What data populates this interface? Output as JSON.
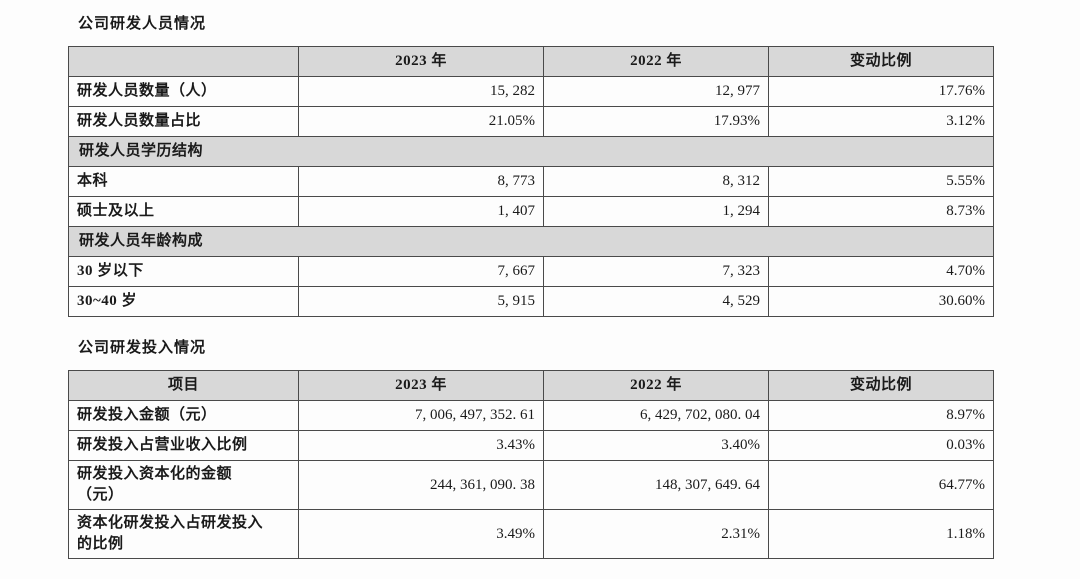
{
  "page": {
    "bg": "#fdfdfd",
    "header_bg": "#d8d8d8",
    "border_color": "#4a4a4a"
  },
  "rd_personnel": {
    "title": "公司研发人员情况",
    "headers": [
      "",
      "2023 年",
      "2022 年",
      "变动比例"
    ],
    "rows": [
      {
        "label": "研发人员数量（人）",
        "v2023": "15, 282",
        "v2022": "12, 977",
        "change": "17.76%"
      },
      {
        "label": "研发人员数量占比",
        "v2023": "21.05%",
        "v2022": "17.93%",
        "change": "3.12%"
      },
      {
        "label": "研发人员学历结构"
      },
      {
        "label": "本科",
        "v2023": "8, 773",
        "v2022": "8, 312",
        "change": "5.55%"
      },
      {
        "label": "硕士及以上",
        "v2023": "1, 407",
        "v2022": "1, 294",
        "change": "8.73%"
      },
      {
        "label": "研发人员年龄构成"
      },
      {
        "label": "30 岁以下",
        "v2023": "7, 667",
        "v2022": "7, 323",
        "change": "4.70%"
      },
      {
        "label": "30~40 岁",
        "v2023": "5, 915",
        "v2022": "4, 529",
        "change": "30.60%"
      }
    ]
  },
  "rd_investment": {
    "title": "公司研发投入情况",
    "headers": [
      "项目",
      "2023 年",
      "2022 年",
      "变动比例"
    ],
    "rows": [
      {
        "label": "研发投入金额（元）",
        "v2023": "7, 006, 497, 352. 61",
        "v2022": "6, 429, 702, 080. 04",
        "change": "8.97%"
      },
      {
        "label": "研发投入占营业收入比例",
        "v2023": "3.43%",
        "v2022": "3.40%",
        "change": "0.03%"
      },
      {
        "label": "研发投入资本化的金额\n（元）",
        "v2023": "244, 361, 090. 38",
        "v2022": "148, 307, 649. 64",
        "change": "64.77%"
      },
      {
        "label": "资本化研发投入占研发投入\n的比例",
        "v2023": "3.49%",
        "v2022": "2.31%",
        "change": "1.18%"
      }
    ]
  }
}
